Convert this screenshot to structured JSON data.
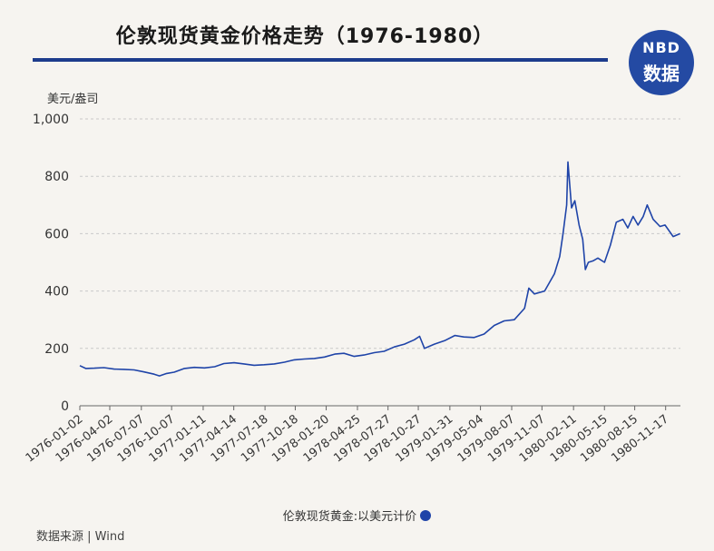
{
  "title": "伦敦现货黄金价格走势（1976-1980）",
  "logo": {
    "brand": "NBD",
    "subtitle": "数据"
  },
  "source": "数据来源 | Wind",
  "colors": {
    "line": "#1f44a8",
    "accent": "#1d3c8c",
    "grid": "#c9c9c9"
  },
  "chart_data": {
    "type": "line",
    "ylabel": "美元/盎司",
    "ylim": [
      0,
      1000
    ],
    "yticks": [
      0,
      200,
      400,
      600,
      800,
      1000
    ],
    "ytick_labels": [
      "0",
      "200",
      "400",
      "600",
      "800",
      "1,000"
    ],
    "xlim": [
      "1976-01-02",
      "1981-01-01"
    ],
    "xticks": [
      "1976-01-02",
      "1976-04-02",
      "1976-07-07",
      "1976-10-07",
      "1977-01-11",
      "1977-04-14",
      "1977-07-18",
      "1977-10-18",
      "1978-01-20",
      "1978-04-25",
      "1978-07-27",
      "1978-10-27",
      "1979-01-31",
      "1979-05-04",
      "1979-08-07",
      "1979-11-07",
      "1980-02-11",
      "1980-05-15",
      "1980-08-15",
      "1980-11-17"
    ],
    "grid": true,
    "legend_position": "bottom",
    "series": [
      {
        "name": "伦敦现货黄金:以美元计价",
        "x": [
          "1976-01-02",
          "1976-01-20",
          "1976-02-15",
          "1976-03-15",
          "1976-04-15",
          "1976-05-15",
          "1976-06-15",
          "1976-07-15",
          "1976-08-15",
          "1976-08-31",
          "1976-09-20",
          "1976-10-15",
          "1976-11-15",
          "1976-12-15",
          "1977-01-15",
          "1977-02-15",
          "1977-03-15",
          "1977-04-15",
          "1977-05-15",
          "1977-06-15",
          "1977-07-15",
          "1977-08-15",
          "1977-09-15",
          "1977-10-15",
          "1977-11-15",
          "1977-12-15",
          "1978-01-15",
          "1978-02-15",
          "1978-03-15",
          "1978-04-15",
          "1978-05-15",
          "1978-06-15",
          "1978-07-15",
          "1978-08-15",
          "1978-09-15",
          "1978-10-15",
          "1978-10-31",
          "1978-11-15",
          "1978-12-15",
          "1979-01-15",
          "1979-02-15",
          "1979-03-15",
          "1979-04-15",
          "1979-05-15",
          "1979-06-15",
          "1979-07-15",
          "1979-08-15",
          "1979-09-15",
          "1979-09-28",
          "1979-10-15",
          "1979-11-15",
          "1979-12-15",
          "1979-12-31",
          "1980-01-10",
          "1980-01-21",
          "1980-01-25",
          "1980-02-05",
          "1980-02-15",
          "1980-02-28",
          "1980-03-10",
          "1980-03-18",
          "1980-03-27",
          "1980-04-10",
          "1980-04-25",
          "1980-05-15",
          "1980-06-02",
          "1980-06-20",
          "1980-07-10",
          "1980-07-25",
          "1980-08-10",
          "1980-08-25",
          "1980-09-10",
          "1980-09-22",
          "1980-10-10",
          "1980-10-31",
          "1980-11-15",
          "1980-12-10",
          "1980-12-31"
        ],
        "values": [
          140,
          130,
          131,
          133,
          128,
          127,
          125,
          118,
          110,
          104,
          112,
          117,
          130,
          134,
          132,
          136,
          147,
          150,
          146,
          141,
          143,
          146,
          152,
          160,
          163,
          165,
          170,
          180,
          183,
          172,
          177,
          185,
          190,
          205,
          215,
          230,
          242,
          200,
          215,
          227,
          245,
          240,
          238,
          250,
          280,
          296,
          300,
          340,
          410,
          390,
          400,
          460,
          520,
          600,
          700,
          850,
          690,
          715,
          630,
          580,
          475,
          500,
          505,
          515,
          500,
          560,
          640,
          650,
          620,
          660,
          630,
          660,
          700,
          650,
          625,
          630,
          590,
          600
        ]
      }
    ]
  }
}
